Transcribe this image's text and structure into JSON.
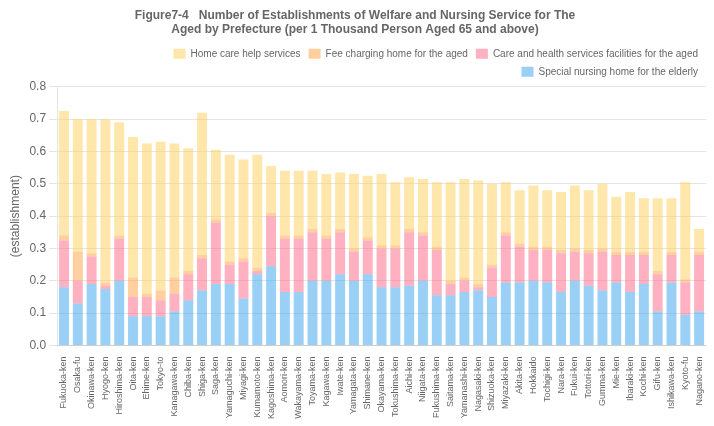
{
  "chart_data": {
    "type": "bar",
    "title": [
      "Figure7-4   Number of Establishments of Welfare and Nursing Service for The",
      "Aged by Prefecture (per 1 Thousand Person Aged 65 and above)"
    ],
    "ylabel": "(establishment)",
    "categories": [
      "Fukuoka-ken",
      "Osaka-fu",
      "Okinawa-ken",
      "Hyogo-ken",
      "Hiroshima-ken",
      "Oita-ken",
      "Ehime-ken",
      "Tokyo-to",
      "Kanagawa-ken",
      "Chiba-ken",
      "Shiga-ken",
      "Saga-ken",
      "Yamaguchi-ken",
      "Miyagi-ken",
      "Kumamoto-ken",
      "Kagoshima-ken",
      "Aomori-ken",
      "Wakayama-ken",
      "Toyama-ken",
      "Kagawa-ken",
      "Iwate-ken",
      "Yamagata-ken",
      "Shimane-ken",
      "Okayama-ken",
      "Tokushima-ken",
      "Aichi-ken",
      "Niigata-ken",
      "Fukushima-ken",
      "Saitama-ken",
      "Yamanashi-ken",
      "Nagasaki-ken",
      "Shizuoka-ken",
      "Miyazaki-ken",
      "Akita-ken",
      "Hokkaido",
      "Tochigi-ken",
      "Nara-ken",
      "Fukui-ken",
      "Tottori-ken",
      "Gumma-ken",
      "Mie-ken",
      "Ibaraki-ken",
      "Kochi-ken",
      "Gifu-ken",
      "Ishikawa-ken",
      "Kyoto-fu",
      "Nagano-ken"
    ],
    "series": [
      {
        "name": "Special nursing home for the elderly",
        "values": [
          0.18,
          0.13,
          0.19,
          0.175,
          0.2,
          0.09,
          0.09,
          0.09,
          0.105,
          0.14,
          0.17,
          0.19,
          0.19,
          0.145,
          0.22,
          0.245,
          0.165,
          0.165,
          0.2,
          0.2,
          0.22,
          0.2,
          0.22,
          0.18,
          0.18,
          0.185,
          0.2,
          0.155,
          0.155,
          0.165,
          0.17,
          0.15,
          0.195,
          0.195,
          0.2,
          0.195,
          0.165,
          0.2,
          0.185,
          0.17,
          0.195,
          0.165,
          0.19,
          0.105,
          0.195,
          0.095,
          0.105
        ]
      },
      {
        "name": "Care and health services facilities for the aged",
        "values": [
          0.145,
          0.07,
          0.085,
          0.01,
          0.13,
          0.06,
          0.06,
          0.05,
          0.055,
          0.08,
          0.1,
          0.19,
          0.06,
          0.115,
          0.01,
          0.155,
          0.165,
          0.165,
          0.15,
          0.13,
          0.13,
          0.09,
          0.105,
          0.12,
          0.12,
          0.165,
          0.14,
          0.14,
          0.035,
          0.035,
          0.01,
          0.09,
          0.145,
          0.11,
          0.095,
          0.1,
          0.12,
          0.09,
          0.1,
          0.12,
          0.085,
          0.115,
          0.09,
          0.115,
          0.085,
          0.1,
          0.175
        ]
      },
      {
        "name": "Fee charging home for the aged",
        "values": [
          0.015,
          0.09,
          0.01,
          0.01,
          0.01,
          0.06,
          0.01,
          0.03,
          0.05,
          0.01,
          0.01,
          0.01,
          0.01,
          0.01,
          0.01,
          0.01,
          0.01,
          0.01,
          0.01,
          0.01,
          0.01,
          0.01,
          0.01,
          0.01,
          0.01,
          0.01,
          0.01,
          0.01,
          0.01,
          0.01,
          0.01,
          0.01,
          0.01,
          0.01,
          0.01,
          0.01,
          0.01,
          0.01,
          0.01,
          0.01,
          0.01,
          0.01,
          0.01,
          0.01,
          0.01,
          0.01,
          0.01
        ]
      },
      {
        "name": "Home care help services",
        "values": [
          0.385,
          0.41,
          0.415,
          0.505,
          0.35,
          0.435,
          0.465,
          0.46,
          0.415,
          0.38,
          0.44,
          0.215,
          0.33,
          0.305,
          0.35,
          0.145,
          0.2,
          0.2,
          0.18,
          0.19,
          0.175,
          0.23,
          0.19,
          0.22,
          0.195,
          0.16,
          0.165,
          0.2,
          0.305,
          0.305,
          0.32,
          0.25,
          0.155,
          0.165,
          0.19,
          0.175,
          0.18,
          0.195,
          0.185,
          0.2,
          0.17,
          0.185,
          0.165,
          0.225,
          0.165,
          0.3,
          0.07
        ]
      }
    ],
    "stacked": true,
    "ylim": [
      0,
      0.8
    ],
    "yticks": [
      {
        "value": 0,
        "label": "0.0"
      },
      0.1,
      0.2,
      0.3,
      0.4,
      0.5,
      0.6,
      0.7,
      0.8
    ],
    "grid": true,
    "legend": "upper right"
  }
}
